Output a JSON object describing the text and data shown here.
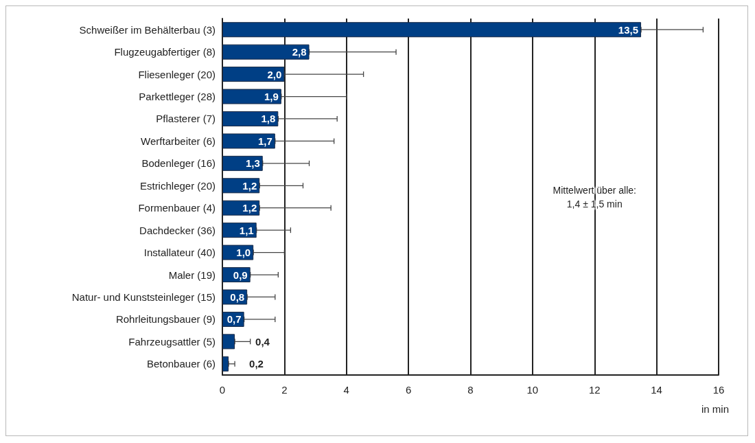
{
  "chart_data": {
    "type": "bar",
    "orientation": "horizontal",
    "xlabel": "in min",
    "categories": [
      "Schweißer im Behälterbau (3)",
      "Flugzeugabfertiger (8)",
      "Fliesenleger (20)",
      "Parkettleger (28)",
      "Pflasterer (7)",
      "Werftarbeiter (6)",
      "Bodenleger (16)",
      "Estrichleger (20)",
      "Formenbauer (4)",
      "Dachdecker (36)",
      "Installateur (40)",
      "Maler (19)",
      "Natur- und Kunststeinleger (15)",
      "Rohrleitungsbauer (9)",
      "Fahrzeugsattler (5)",
      "Betonbauer (6)"
    ],
    "values": [
      13.5,
      2.8,
      2.0,
      1.9,
      1.8,
      1.7,
      1.3,
      1.2,
      1.2,
      1.1,
      1.0,
      0.9,
      0.8,
      0.7,
      0.4,
      0.2
    ],
    "value_labels": [
      "13,5",
      "2,8",
      "2,0",
      "1,9",
      "1,8",
      "1,7",
      "1,3",
      "1,2",
      "1,2",
      "1,1",
      "1,0",
      "0,9",
      "0,8",
      "0,7",
      "0,4",
      "0,2"
    ],
    "errors": [
      [
        13.5,
        15.5
      ],
      [
        2.8,
        5.6
      ],
      [
        2.0,
        4.55
      ],
      [
        1.9,
        4.0
      ],
      [
        1.8,
        3.7
      ],
      [
        1.7,
        3.6
      ],
      [
        1.3,
        2.8
      ],
      [
        1.2,
        2.6
      ],
      [
        1.2,
        3.5
      ],
      [
        1.1,
        2.2
      ],
      [
        1.0,
        2.0
      ],
      [
        0.9,
        1.8
      ],
      [
        0.8,
        1.7
      ],
      [
        0.7,
        1.7
      ],
      [
        0.4,
        0.9
      ],
      [
        0.2,
        0.4
      ]
    ],
    "color": "#003f85",
    "xlim": [
      0,
      16
    ],
    "xticks": [
      0,
      2,
      4,
      6,
      8,
      10,
      12,
      14,
      16
    ],
    "grid": "x",
    "annotations": [
      "Mittelwert über alle:\n1,4 ± 1,5 min"
    ]
  }
}
